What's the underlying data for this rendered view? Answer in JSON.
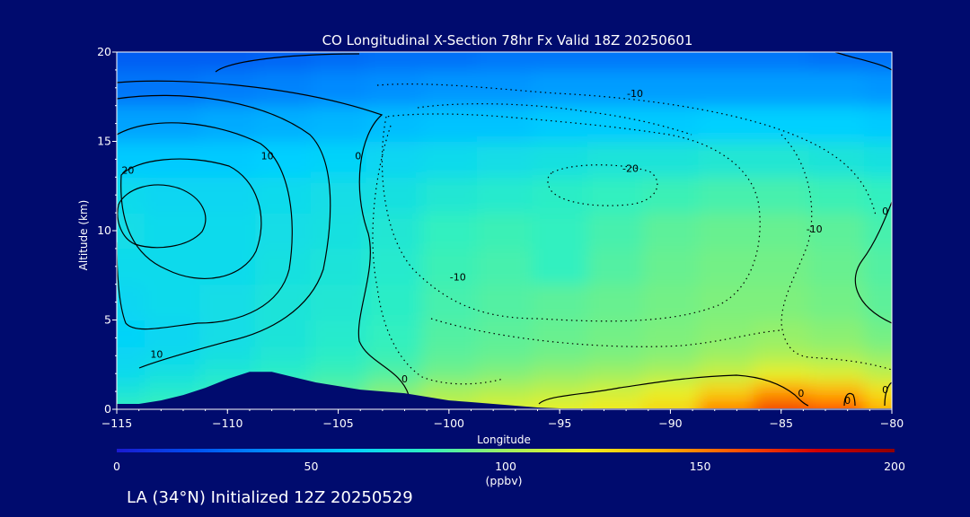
{
  "chart_data": {
    "type": "heatmap",
    "title": "CO Longitudinal X-Section 78hr  Fx Valid 18Z 20250601",
    "xlabel": "Longitude",
    "ylabel": "Altitude (km)",
    "xlim": [
      -115,
      -80
    ],
    "ylim": [
      0,
      20
    ],
    "x_ticks": [
      -115,
      -110,
      -105,
      -100,
      -95,
      -90,
      -85,
      -80
    ],
    "x_tick_labels": [
      "−115",
      "−110",
      "−105",
      "−100",
      "−95",
      "−90",
      "−85",
      "−80"
    ],
    "y_ticks": [
      0,
      5,
      10,
      15,
      20
    ],
    "y_tick_labels": [
      "0",
      "5",
      "10",
      "15",
      "20"
    ],
    "colorbar": {
      "label": "(ppbv)",
      "min": 0,
      "max": 200,
      "ticks": [
        0,
        50,
        100,
        150,
        200
      ],
      "tick_labels": [
        "0",
        "50",
        "100",
        "150",
        "200"
      ],
      "colors": [
        "#1a1ad0",
        "#0050f0",
        "#0090ff",
        "#00d0ff",
        "#30f0c0",
        "#a0f060",
        "#f0f020",
        "#ffb000",
        "#ff5000",
        "#d00000",
        "#900000"
      ]
    },
    "field_grid": {
      "description_units": "CO mixing ratio (ppbv)",
      "longitudes": [
        -115,
        -112.5,
        -110,
        -107.5,
        -105,
        -102.5,
        -100,
        -97.5,
        -95,
        -92.5,
        -90,
        -87.5,
        -85,
        -82.5,
        -80
      ],
      "altitudes": [
        0,
        1,
        2,
        3,
        4,
        6,
        8,
        10,
        12,
        14,
        16,
        18,
        20
      ],
      "values": [
        [
          80,
          82,
          85,
          88,
          90,
          100,
          110,
          115,
          118,
          122,
          128,
          150,
          165,
          160,
          140
        ],
        [
          72,
          76,
          80,
          84,
          88,
          95,
          102,
          105,
          108,
          112,
          118,
          130,
          145,
          140,
          125
        ],
        [
          66,
          70,
          74,
          78,
          82,
          86,
          92,
          95,
          98,
          100,
          104,
          110,
          118,
          115,
          108
        ],
        [
          64,
          66,
          70,
          74,
          78,
          82,
          88,
          90,
          92,
          94,
          96,
          100,
          104,
          102,
          98
        ],
        [
          62,
          64,
          68,
          72,
          76,
          80,
          86,
          88,
          90,
          92,
          94,
          96,
          98,
          96,
          92
        ],
        [
          64,
          66,
          68,
          72,
          74,
          78,
          84,
          86,
          88,
          90,
          92,
          94,
          94,
          92,
          88
        ],
        [
          66,
          66,
          66,
          70,
          72,
          76,
          82,
          84,
          80,
          86,
          90,
          92,
          92,
          90,
          86
        ],
        [
          68,
          66,
          66,
          68,
          70,
          74,
          80,
          82,
          80,
          84,
          88,
          90,
          90,
          88,
          84
        ],
        [
          66,
          64,
          64,
          66,
          68,
          70,
          74,
          76,
          78,
          80,
          82,
          84,
          84,
          82,
          80
        ],
        [
          58,
          58,
          58,
          60,
          62,
          64,
          66,
          68,
          70,
          72,
          72,
          74,
          74,
          72,
          70
        ],
        [
          46,
          46,
          48,
          50,
          52,
          54,
          56,
          56,
          58,
          58,
          58,
          60,
          60,
          60,
          58
        ],
        [
          32,
          32,
          34,
          36,
          38,
          40,
          42,
          42,
          44,
          44,
          44,
          44,
          44,
          44,
          42
        ],
        [
          24,
          24,
          24,
          26,
          28,
          30,
          30,
          32,
          32,
          32,
          32,
          32,
          32,
          30,
          30
        ]
      ]
    },
    "contour_labels": [
      {
        "text": "20",
        "lon": -114.5,
        "alt": 13.4
      },
      {
        "text": "10",
        "lon": -108.2,
        "alt": 14.2
      },
      {
        "text": "0",
        "lon": -104.1,
        "alt": 14.2
      },
      {
        "text": "10",
        "lon": -113.2,
        "alt": 3.1
      },
      {
        "text": "0",
        "lon": -102.0,
        "alt": 1.7
      },
      {
        "text": "-10",
        "lon": -91.6,
        "alt": 17.7
      },
      {
        "text": "-20",
        "lon": -91.8,
        "alt": 13.5
      },
      {
        "text": "-10",
        "lon": -99.6,
        "alt": 7.4
      },
      {
        "text": "-10",
        "lon": -83.5,
        "alt": 10.1
      },
      {
        "text": "0",
        "lon": -80.3,
        "alt": 11.1
      },
      {
        "text": "0",
        "lon": -84.1,
        "alt": 0.9
      },
      {
        "text": "0",
        "lon": -82.0,
        "alt": 0.5
      },
      {
        "text": "0",
        "lon": -80.3,
        "alt": 1.1
      }
    ],
    "terrain": {
      "lon": [
        -115,
        -114,
        -113,
        -112,
        -111,
        -110,
        -109,
        -108,
        -107,
        -106,
        -105,
        -104,
        -103,
        -102,
        -101,
        -100,
        -99,
        -98,
        -97,
        -96,
        -95,
        -80
      ],
      "alt": [
        0.3,
        0.3,
        0.5,
        0.8,
        1.2,
        1.7,
        2.1,
        2.1,
        1.8,
        1.5,
        1.3,
        1.1,
        1.0,
        0.9,
        0.7,
        0.5,
        0.4,
        0.3,
        0.2,
        0.1,
        0.05,
        0.05
      ]
    }
  },
  "footer": {
    "caption": "LA (34°N) Initialized 12Z 20250529"
  }
}
